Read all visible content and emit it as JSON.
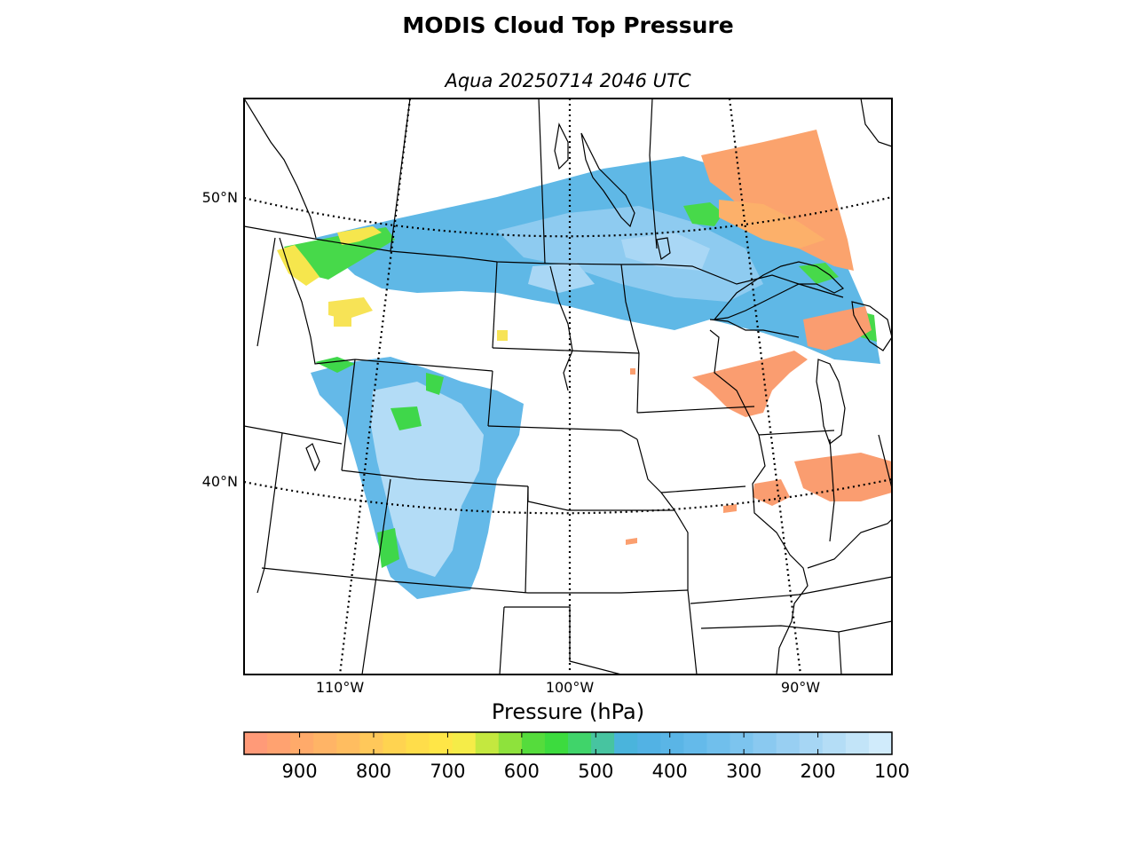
{
  "title": "MODIS Cloud Top Pressure",
  "subtitle": "Aqua 20250714 2046 UTC",
  "map": {
    "parallels": [
      {
        "label": "50°N"
      },
      {
        "label": "40°N"
      }
    ],
    "meridians": [
      {
        "label": "110°W"
      },
      {
        "label": "100°W"
      },
      {
        "label": "90°W"
      }
    ]
  },
  "colorbar": {
    "title": "Pressure (hPa)",
    "ticks": [
      "900",
      "800",
      "700",
      "600",
      "500",
      "400",
      "300",
      "200",
      "100"
    ],
    "range": [
      975,
      100
    ],
    "colors": [
      "#ff9a78",
      "#ffa270",
      "#ffaa6a",
      "#ffb466",
      "#ffbd60",
      "#ffc85a",
      "#ffd350",
      "#ffdd4a",
      "#ffe647",
      "#f5ec48",
      "#c4e83f",
      "#8ee23c",
      "#55dc3c",
      "#3cdb3e",
      "#40d46a",
      "#47c4a0",
      "#4ab4dc",
      "#52b2e4",
      "#5ab5e6",
      "#64baea",
      "#70bfec",
      "#7cc4ee",
      "#8ac9f0",
      "#98cff2",
      "#a6d6f4",
      "#b4ddf6",
      "#c2e4f8",
      "#d0ebfb"
    ]
  },
  "colors": {
    "low_cloud": "#f9a06f",
    "mid_cloud": "#f6e64d",
    "mid_high_cloud": "#47d94a",
    "high_cloud": "#61b8e6",
    "very_high_cloud": "#b3dcf6"
  }
}
